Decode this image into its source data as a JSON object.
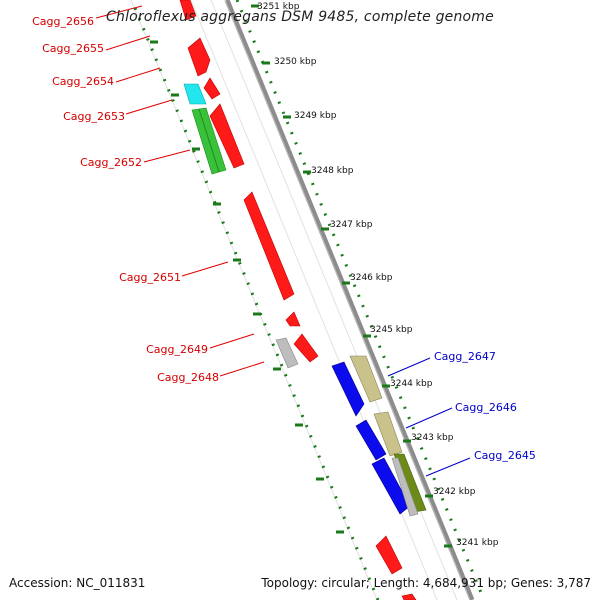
{
  "map": {
    "title": "Chloroflexus aggregans DSM 9485, complete genome",
    "accession": "Accession: NC_011831",
    "topology": "Topology: circular; Length: 4,684,931 bp; Genes: 3,787",
    "kbp_labels": [
      "3251 kbp",
      "3250 kbp",
      "3249 kbp",
      "3248 kbp",
      "3247 kbp",
      "3246 kbp",
      "3245 kbp",
      "3244 kbp",
      "3243 kbp",
      "3242 kbp",
      "3241 kbp"
    ],
    "genes_left": [
      "Cagg_2656",
      "Cagg_2655",
      "Cagg_2654",
      "Cagg_2653",
      "Cagg_2652",
      "Cagg_2651",
      "Cagg_2649",
      "Cagg_2648"
    ],
    "genes_right": [
      "Cagg_2647",
      "Cagg_2646",
      "Cagg_2645"
    ],
    "colors": {
      "left_label": "#d40000",
      "right_label": "#0000cc",
      "backbone": "#8c8c8c",
      "ticks": "#1a7a1a",
      "red": "#ff1a1a",
      "cyan": "#22e6ee",
      "green": "#39c239",
      "grey": "#bdbdbd",
      "blue": "#0b0bee",
      "khaki": "#c9c28a",
      "olive": "#6c8a18"
    }
  }
}
